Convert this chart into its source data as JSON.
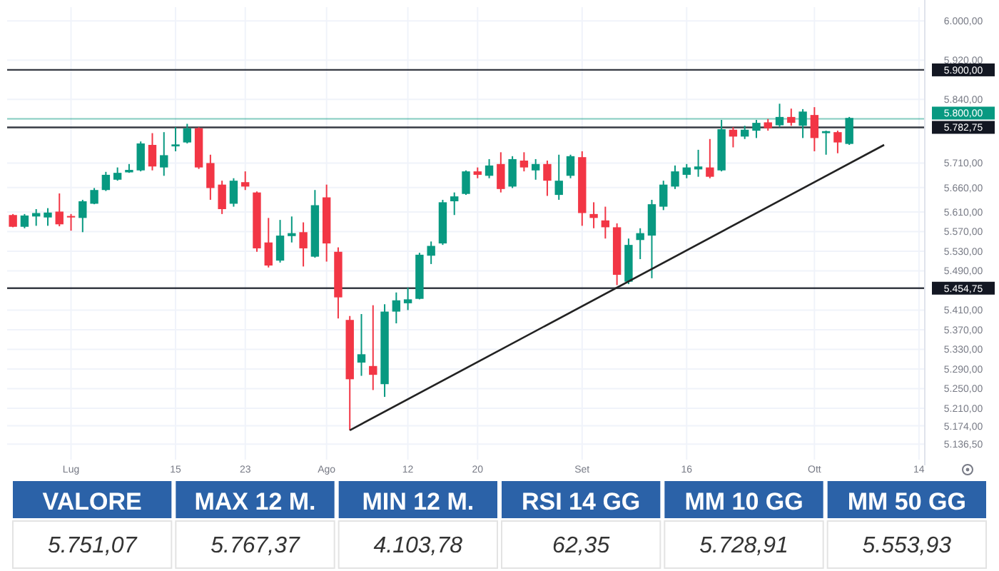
{
  "chart_data": [
    {
      "type": "candlestick",
      "categories": [
        null,
        null,
        null,
        null,
        null,
        "Lug",
        null,
        null,
        null,
        null,
        null,
        null,
        null,
        null,
        "15",
        null,
        null,
        null,
        null,
        null,
        "23",
        null,
        null,
        null,
        null,
        null,
        null,
        "Ago",
        null,
        null,
        null,
        null,
        null,
        null,
        "12",
        null,
        null,
        null,
        null,
        null,
        "20",
        null,
        null,
        null,
        null,
        null,
        null,
        null,
        null,
        "Set",
        null,
        null,
        null,
        null,
        null,
        null,
        null,
        null,
        "16",
        null,
        null,
        null,
        null,
        null,
        null,
        null,
        null,
        null,
        null,
        "Ott",
        null,
        null,
        null,
        null,
        null,
        null,
        null,
        null,
        "14"
      ],
      "ohlc": [
        [
          5604,
          5606,
          5579,
          5580
        ],
        [
          5580,
          5606,
          5577,
          5603
        ],
        [
          5601,
          5616,
          5582,
          5608
        ],
        [
          5599,
          5618,
          5582,
          5609
        ],
        [
          5611,
          5648,
          5581,
          5585
        ],
        [
          5602,
          5606,
          5572,
          5599
        ],
        [
          5598,
          5635,
          5569,
          5632
        ],
        [
          5627,
          5659,
          5626,
          5655
        ],
        [
          5655,
          5692,
          5653,
          5686
        ],
        [
          5676,
          5701,
          5674,
          5690
        ],
        [
          5691,
          5708,
          5690,
          5696
        ],
        [
          5695,
          5754,
          5693,
          5750
        ],
        [
          5747,
          5771,
          5695,
          5703
        ],
        [
          5701,
          5773,
          5684,
          5726
        ],
        [
          5744,
          5783,
          5734,
          5748
        ],
        [
          5752,
          5790,
          5750,
          5781
        ],
        [
          5781,
          5783,
          5698,
          5701
        ],
        [
          5710,
          5727,
          5635,
          5659
        ],
        [
          5666,
          5674,
          5606,
          5616
        ],
        [
          5627,
          5679,
          5621,
          5674
        ],
        [
          5671,
          5693,
          5655,
          5662
        ],
        [
          5650,
          5652,
          5529,
          5536
        ],
        [
          5548,
          5598,
          5497,
          5501
        ],
        [
          5511,
          5594,
          5507,
          5562
        ],
        [
          5561,
          5601,
          5548,
          5567
        ],
        [
          5569,
          5589,
          5499,
          5536
        ],
        [
          5519,
          5655,
          5517,
          5624
        ],
        [
          5640,
          5666,
          5509,
          5546
        ],
        [
          5529,
          5538,
          5393,
          5436
        ],
        [
          5390,
          5398,
          5165,
          5269
        ],
        [
          5303,
          5402,
          5276,
          5320
        ],
        [
          5296,
          5420,
          5247,
          5278
        ],
        [
          5259,
          5422,
          5233,
          5407
        ],
        [
          5407,
          5446,
          5383,
          5430
        ],
        [
          5424,
          5456,
          5410,
          5432
        ],
        [
          5433,
          5527,
          5432,
          5523
        ],
        [
          5521,
          5550,
          5504,
          5541
        ],
        [
          5546,
          5635,
          5543,
          5630
        ],
        [
          5632,
          5650,
          5604,
          5642
        ],
        [
          5647,
          5695,
          5645,
          5693
        ],
        [
          5693,
          5701,
          5679,
          5686
        ],
        [
          5684,
          5718,
          5679,
          5705
        ],
        [
          5708,
          5732,
          5650,
          5657
        ],
        [
          5662,
          5724,
          5659,
          5718
        ],
        [
          5715,
          5732,
          5693,
          5701
        ],
        [
          5695,
          5718,
          5676,
          5708
        ],
        [
          5708,
          5715,
          5643,
          5674
        ],
        [
          5645,
          5727,
          5635,
          5674
        ],
        [
          5684,
          5727,
          5679,
          5724
        ],
        [
          5722,
          5734,
          5582,
          5608
        ],
        [
          5606,
          5630,
          5577,
          5598
        ],
        [
          5593,
          5621,
          5556,
          5579
        ],
        [
          5579,
          5587,
          5461,
          5482
        ],
        [
          5468,
          5556,
          5463,
          5543
        ],
        [
          5553,
          5577,
          5514,
          5567
        ],
        [
          5562,
          5635,
          5475,
          5626
        ],
        [
          5621,
          5674,
          5614,
          5666
        ],
        [
          5662,
          5705,
          5657,
          5693
        ],
        [
          5686,
          5708,
          5679,
          5701
        ],
        [
          5697,
          5737,
          5682,
          5703
        ],
        [
          5701,
          5759,
          5679,
          5682
        ],
        [
          5695,
          5798,
          5693,
          5779
        ],
        [
          5778,
          5783,
          5742,
          5764
        ],
        [
          5764,
          5786,
          5759,
          5778
        ],
        [
          5776,
          5798,
          5761,
          5792
        ],
        [
          5793,
          5800,
          5776,
          5781
        ],
        [
          5787,
          5831,
          5783,
          5804
        ],
        [
          5804,
          5821,
          5786,
          5792
        ],
        [
          5786,
          5820,
          5761,
          5815
        ],
        [
          5808,
          5824,
          5734,
          5761
        ],
        [
          5771,
          5776,
          5727,
          5775
        ],
        [
          5773,
          5776,
          5730,
          5752
        ],
        [
          5749,
          5804,
          5747,
          5802
        ],
        null,
        null,
        null,
        null,
        null,
        null
      ],
      "colors": [
        "#f23645",
        "#089981",
        "#089981",
        "#089981",
        "#f23645",
        "#f23645",
        "#089981",
        "#089981",
        "#089981",
        "#089981",
        "#089981",
        "#089981",
        "#f23645",
        "#089981",
        "#089981",
        "#089981",
        "#f23645",
        "#f23645",
        "#f23645",
        "#089981",
        "#f23645",
        "#f23645",
        "#f23645",
        "#089981",
        "#089981",
        "#f23645",
        "#089981",
        "#f23645",
        "#f23645",
        "#f23645",
        "#089981",
        "#f23645",
        "#089981",
        "#089981",
        "#089981",
        "#089981",
        "#089981",
        "#089981",
        "#089981",
        "#089981",
        "#f23645",
        "#089981",
        "#f23645",
        "#089981",
        "#f23645",
        "#089981",
        "#f23645",
        "#089981",
        "#089981",
        "#f23645",
        "#f23645",
        "#f23645",
        "#f23645",
        "#089981",
        "#089981",
        "#089981",
        "#089981",
        "#089981",
        "#089981",
        "#089981",
        "#f23645",
        "#089981",
        "#f23645",
        "#089981",
        "#089981",
        "#f23645",
        "#089981",
        "#f23645",
        "#089981",
        "#f23645",
        "#089981",
        "#f23645",
        "#089981",
        null,
        null,
        null,
        null,
        null,
        null
      ],
      "series": [
        {
          "type": "line",
          "color": "#222222",
          "values": [
            null,
            null,
            null,
            null,
            null,
            null,
            null,
            null,
            null,
            null,
            null,
            null,
            null,
            null,
            null,
            null,
            null,
            null,
            null,
            null,
            null,
            null,
            null,
            null,
            null,
            null,
            null,
            null,
            null,
            5165,
            null,
            null,
            null,
            null,
            null,
            null,
            null,
            null,
            null,
            null,
            null,
            null,
            null,
            null,
            null,
            null,
            null,
            null,
            null,
            null,
            null,
            null,
            null,
            null,
            null,
            null,
            null,
            null,
            null,
            null,
            null,
            null,
            null,
            null,
            null,
            null,
            null,
            null,
            null,
            null,
            null,
            null,
            null,
            null,
            null,
            5747,
            null,
            null,
            null
          ]
        }
      ],
      "ylim": [
        5105,
        6028
      ],
      "yticks": [
        {
          "value": 6000,
          "label": "6.000,00"
        },
        {
          "value": 5920,
          "label": "5.920,00"
        },
        {
          "value": 5840,
          "label": "5.840,00"
        },
        {
          "value": 5710,
          "label": "5.710,00"
        },
        {
          "value": 5660,
          "label": "5.660,00"
        },
        {
          "value": 5610,
          "label": "5.610,00"
        },
        {
          "value": 5570,
          "label": "5.570,00"
        },
        {
          "value": 5530,
          "label": "5.530,00"
        },
        {
          "value": 5490,
          "label": "5.490,00"
        },
        {
          "value": 5410,
          "label": "5.410,00"
        },
        {
          "value": 5370,
          "label": "5.370,00"
        },
        {
          "value": 5330,
          "label": "5.330,00"
        },
        {
          "value": 5290,
          "label": "5.290,00"
        },
        {
          "value": 5250,
          "label": "5.250,00"
        },
        {
          "value": 5210,
          "label": "5.210,00"
        },
        {
          "value": 5174,
          "label": "5.174,00"
        },
        {
          "value": 5136.5,
          "label": "5.136,50"
        }
      ],
      "ref_lines": [
        {
          "axis": "y",
          "value": 5900,
          "label": "5.900,00",
          "color": "#131722"
        },
        {
          "axis": "y",
          "value": 5800,
          "label": "5.800,00",
          "color": "#089981"
        },
        {
          "axis": "y",
          "value": 5782.75,
          "label": "5.782,75",
          "color": "#131722"
        },
        {
          "axis": "y",
          "value": 5454.75,
          "label": "5.454,75",
          "color": "#131722"
        }
      ],
      "grid": true
    },
    {
      "type": "other",
      "categories": [
        "VALORE",
        "MAX 12 M.",
        "MIN 12 M.",
        "RSI 14 GG",
        "MM 10 GG",
        "MM 50 GG"
      ],
      "value_labels": [
        "5.751,07",
        "5.767,37",
        "4.103,78",
        "62,35",
        "5.728,91",
        "5.553,93"
      ],
      "color": "#2b62a8"
    }
  ]
}
